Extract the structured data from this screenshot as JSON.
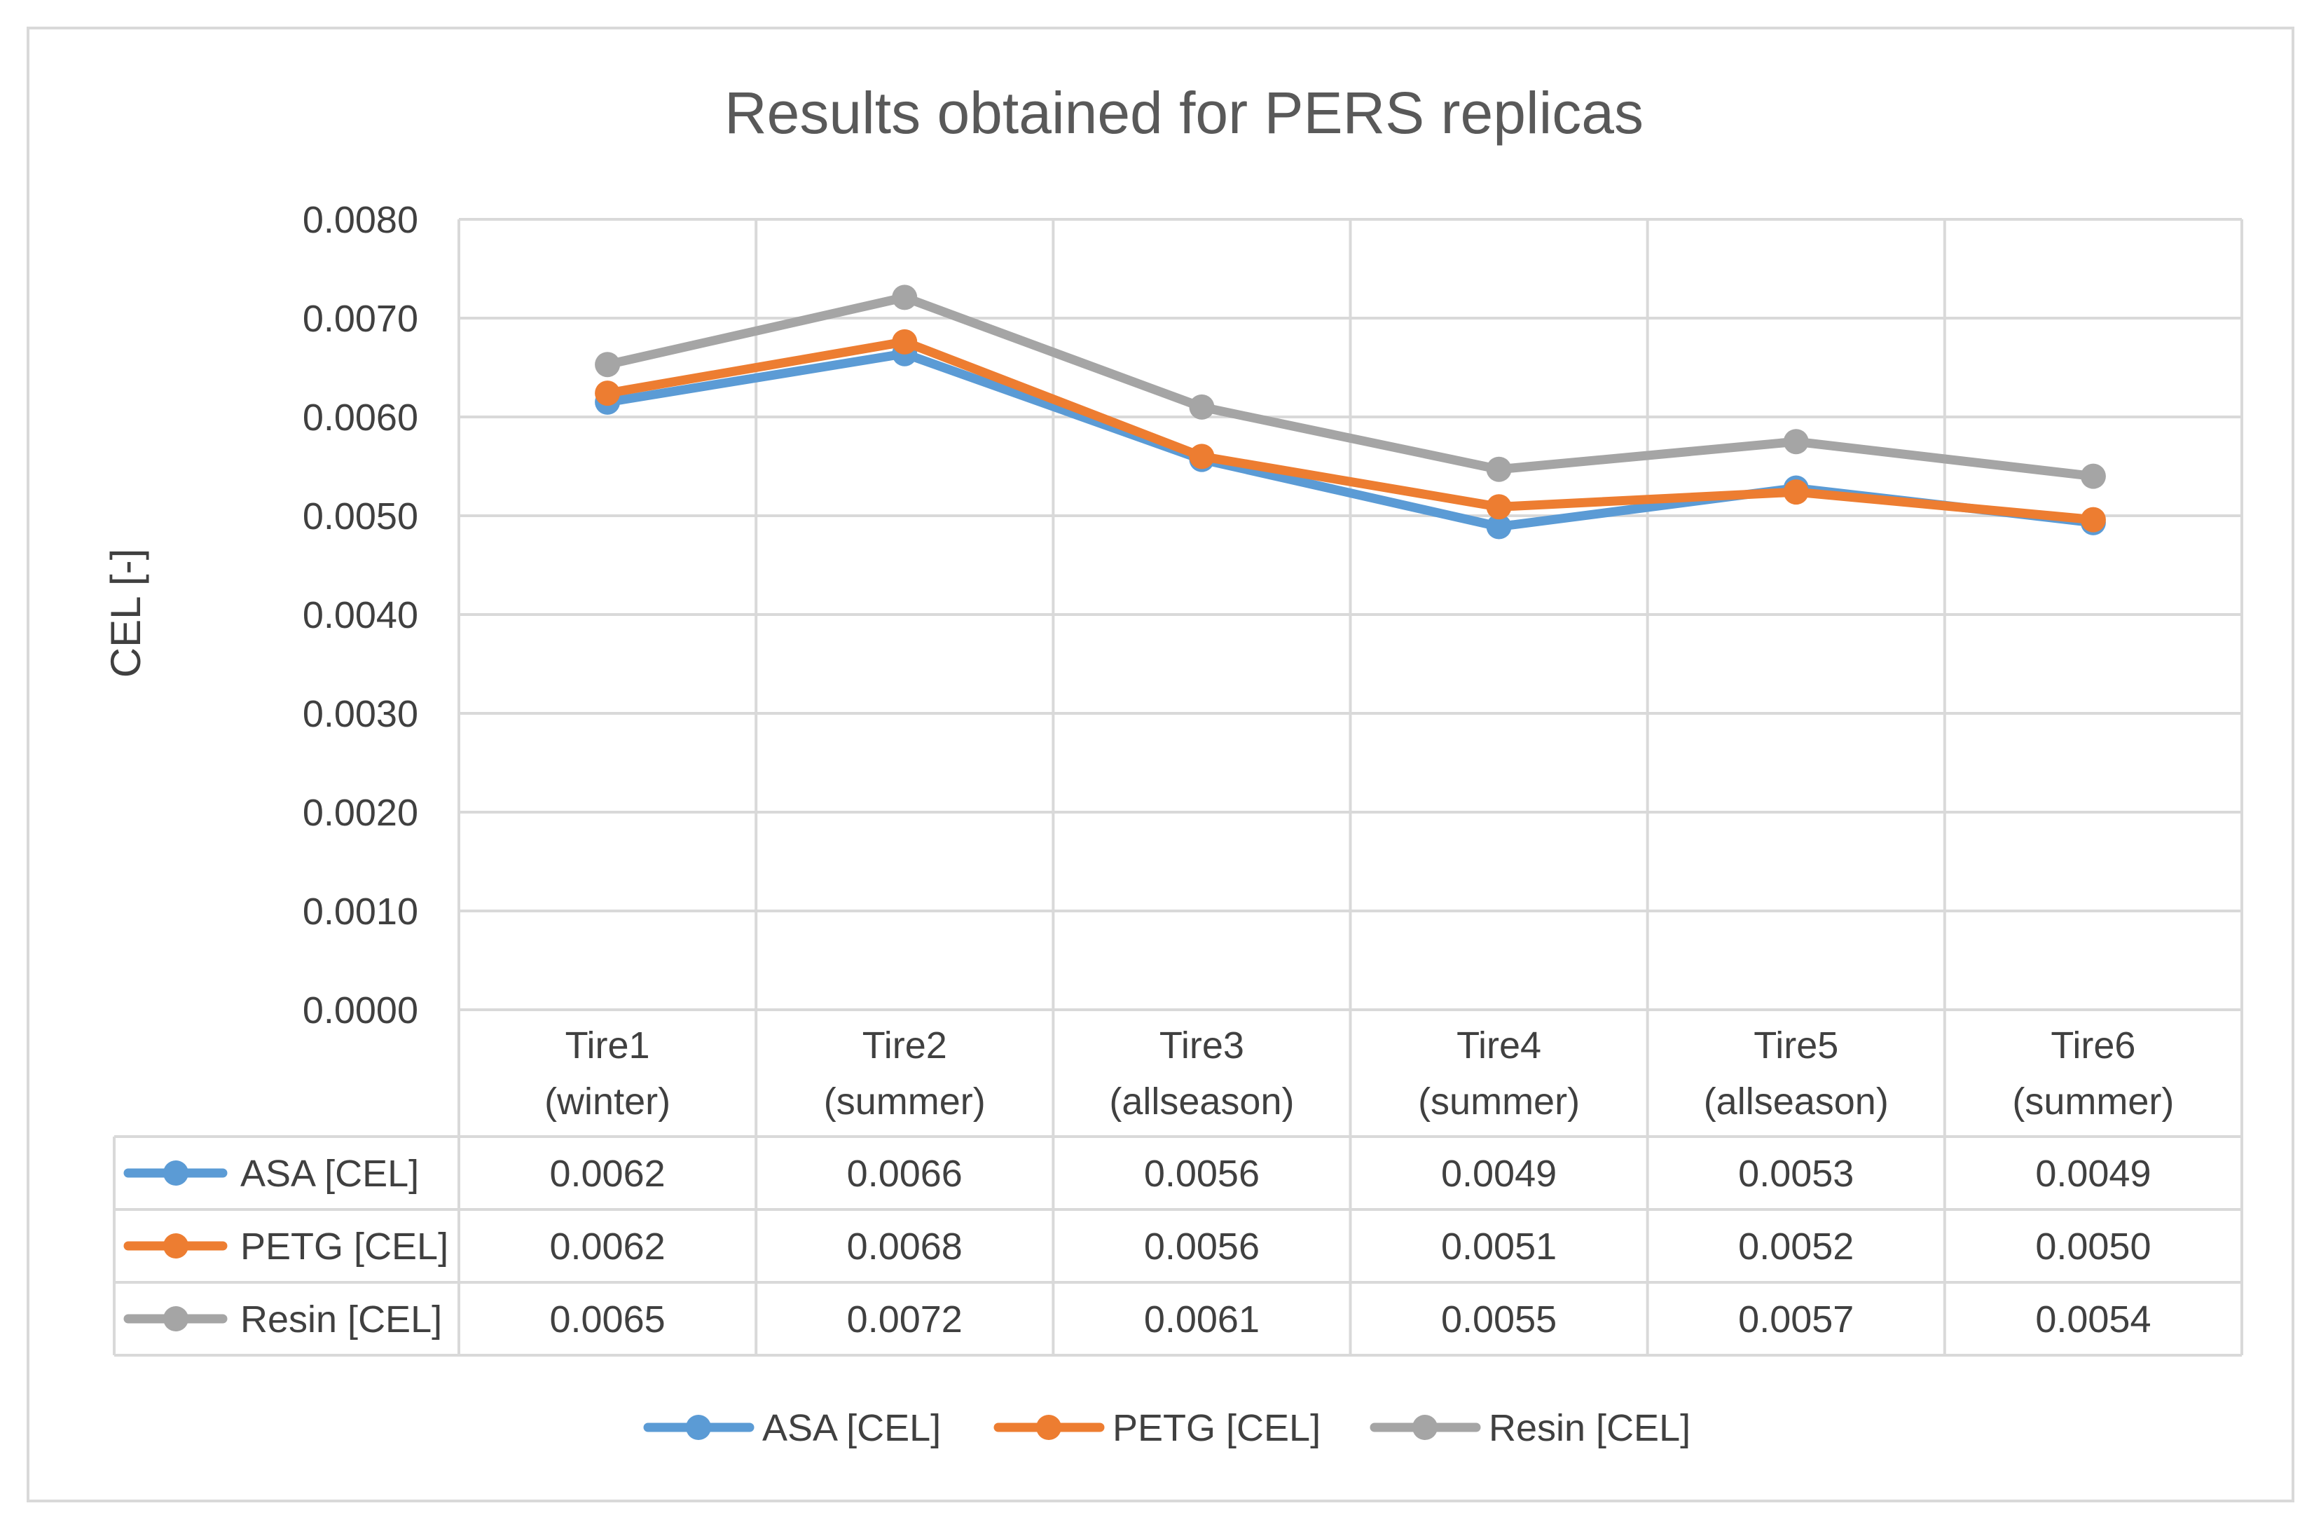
{
  "chart_data": {
    "type": "line",
    "title": "Results obtained for PERS replicas",
    "xlabel": "",
    "ylabel": "CEL [-]",
    "ylim": [
      0,
      0.008
    ],
    "yticks": [
      "0.0000",
      "0.0010",
      "0.0020",
      "0.0030",
      "0.0040",
      "0.0050",
      "0.0060",
      "0.0070",
      "0.0080"
    ],
    "categories": [
      {
        "line1": "Tire1",
        "line2": "(winter)"
      },
      {
        "line1": "Tire2",
        "line2": "(summer)"
      },
      {
        "line1": "Tire3",
        "line2": "(allseason)"
      },
      {
        "line1": "Tire4",
        "line2": "(summer)"
      },
      {
        "line1": "Tire5",
        "line2": "(allseason)"
      },
      {
        "line1": "Tire6",
        "line2": "(summer)"
      }
    ],
    "series": [
      {
        "name": "ASA [CEL]",
        "color": "#5b9bd5",
        "values": [
          0.00615,
          0.00664,
          0.00557,
          0.00489,
          0.00528,
          0.00493
        ],
        "table_values": [
          "0.0062",
          "0.0066",
          "0.0056",
          "0.0049",
          "0.0053",
          "0.0049"
        ]
      },
      {
        "name": "PETG [CEL]",
        "color": "#ed7d31",
        "values": [
          0.00624,
          0.00676,
          0.0056,
          0.00509,
          0.00524,
          0.00496
        ],
        "table_values": [
          "0.0062",
          "0.0068",
          "0.0056",
          "0.0051",
          "0.0052",
          "0.0050"
        ]
      },
      {
        "name": "Resin [CEL]",
        "color": "#a5a5a5",
        "values": [
          0.00653,
          0.00721,
          0.0061,
          0.00547,
          0.00575,
          0.0054
        ],
        "table_values": [
          "0.0065",
          "0.0072",
          "0.0061",
          "0.0055",
          "0.0057",
          "0.0054"
        ]
      }
    ],
    "grid": true,
    "legend": "bottom",
    "data_table": true
  }
}
